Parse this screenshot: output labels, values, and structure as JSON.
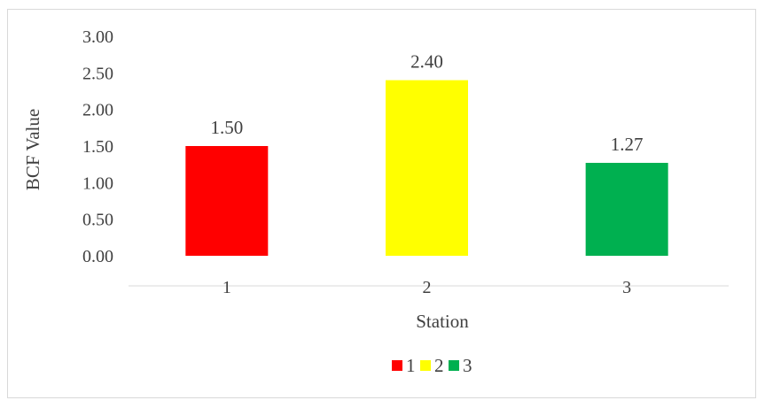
{
  "chart_data": {
    "type": "bar",
    "title": "",
    "xlabel": "Station",
    "ylabel": "BCF Value",
    "categories": [
      "1",
      "2",
      "3"
    ],
    "values": [
      1.5,
      2.4,
      1.27
    ],
    "value_labels": [
      "1.50",
      "2.40",
      "1.27"
    ],
    "colors": [
      "#ff0000",
      "#ffff00",
      "#00b050"
    ],
    "ylim": [
      0,
      3
    ],
    "yticks": [
      "0.00",
      "0.50",
      "1.00",
      "1.50",
      "2.00",
      "2.50",
      "3.00"
    ],
    "grid": false,
    "legend": {
      "position": "bottom",
      "entries": [
        "1",
        "2",
        "3"
      ]
    }
  }
}
